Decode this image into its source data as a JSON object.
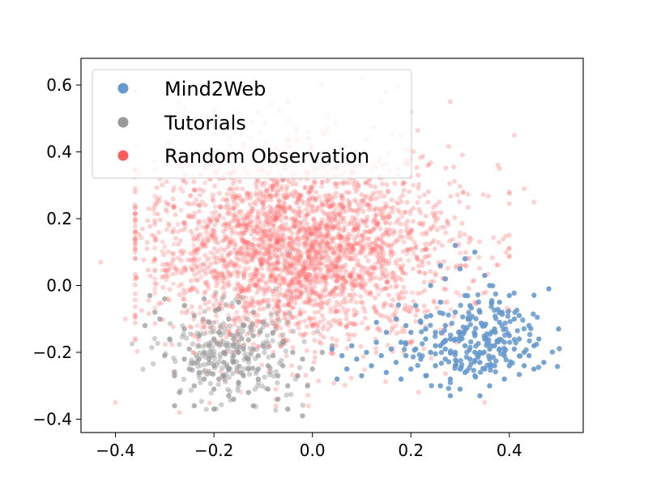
{
  "chart_data": {
    "type": "scatter",
    "title": "",
    "xlabel": "",
    "ylabel": "",
    "xlim": [
      -0.47,
      0.55
    ],
    "ylim": [
      -0.44,
      0.68
    ],
    "x_ticks": [
      -0.4,
      -0.2,
      0.0,
      0.2,
      0.4
    ],
    "y_ticks": [
      -0.4,
      -0.2,
      0.0,
      0.2,
      0.4,
      0.6
    ],
    "x_tick_labels": [
      "−0.4",
      "−0.2",
      "0.0",
      "0.2",
      "0.4"
    ],
    "y_tick_labels": [
      "−0.4",
      "−0.2",
      "0.0",
      "0.2",
      "0.4",
      "0.6"
    ],
    "grid": false,
    "legend_position": "top-left",
    "series": [
      {
        "name": "Mind2Web",
        "color": "#6699cc",
        "legend_color": "#6699cc",
        "alpha": 0.9,
        "points": [
          [
            0.48,
            -0.01
          ],
          [
            0.5,
            -0.13
          ],
          [
            0.47,
            -0.23
          ],
          [
            0.43,
            -0.2
          ],
          [
            0.41,
            -0.1
          ],
          [
            0.4,
            -0.15
          ],
          [
            0.39,
            -0.28
          ],
          [
            0.38,
            -0.05
          ],
          [
            0.37,
            -0.18
          ],
          [
            0.36,
            -0.22
          ],
          [
            0.35,
            -0.25
          ],
          [
            0.35,
            -0.12
          ],
          [
            0.34,
            -0.2
          ],
          [
            0.34,
            -0.08
          ],
          [
            0.33,
            -0.27
          ],
          [
            0.33,
            -0.15
          ],
          [
            0.32,
            -0.22
          ],
          [
            0.32,
            -0.1
          ],
          [
            0.31,
            -0.18
          ],
          [
            0.31,
            -0.03
          ],
          [
            0.3,
            -0.25
          ],
          [
            0.3,
            -0.14
          ],
          [
            0.3,
            0.05
          ],
          [
            0.29,
            -0.2
          ],
          [
            0.29,
            -0.08
          ],
          [
            0.28,
            -0.28
          ],
          [
            0.28,
            -0.16
          ],
          [
            0.27,
            -0.22
          ],
          [
            0.27,
            -0.12
          ],
          [
            0.27,
            0.02
          ],
          [
            0.26,
            -0.3
          ],
          [
            0.26,
            -0.18
          ],
          [
            0.26,
            -0.05
          ],
          [
            0.25,
            -0.24
          ],
          [
            0.25,
            -0.14
          ],
          [
            0.24,
            -0.2
          ],
          [
            0.24,
            -0.09
          ],
          [
            0.23,
            -0.27
          ],
          [
            0.23,
            -0.16
          ],
          [
            0.22,
            -0.22
          ],
          [
            0.22,
            -0.11
          ],
          [
            0.21,
            -0.19
          ],
          [
            0.2,
            -0.25
          ],
          [
            0.2,
            -0.14
          ],
          [
            0.19,
            -0.21
          ],
          [
            0.18,
            -0.28
          ],
          [
            0.18,
            -0.17
          ],
          [
            0.17,
            -0.23
          ],
          [
            0.16,
            -0.19
          ],
          [
            0.15,
            -0.26
          ],
          [
            0.14,
            -0.21
          ],
          [
            0.13,
            -0.17
          ],
          [
            0.12,
            -0.24
          ],
          [
            0.11,
            -0.2
          ],
          [
            0.1,
            -0.27
          ],
          [
            0.09,
            -0.22
          ],
          [
            0.08,
            -0.18
          ],
          [
            0.07,
            -0.25
          ],
          [
            0.06,
            -0.21
          ],
          [
            0.05,
            -0.28
          ],
          [
            0.04,
            -0.19
          ],
          [
            0.36,
            -0.3
          ],
          [
            0.37,
            -0.24
          ],
          [
            0.38,
            -0.19
          ],
          [
            0.39,
            -0.21
          ],
          [
            0.4,
            -0.24
          ],
          [
            0.41,
            -0.19
          ],
          [
            0.42,
            -0.16
          ],
          [
            0.43,
            -0.24
          ],
          [
            0.44,
            -0.12
          ],
          [
            0.45,
            -0.18
          ],
          [
            0.46,
            -0.16
          ],
          [
            0.33,
            0.1
          ],
          [
            0.31,
            0.08
          ],
          [
            0.29,
            0.12
          ],
          [
            0.35,
            0.03
          ],
          [
            0.36,
            0.0
          ],
          [
            0.34,
            -0.33
          ],
          [
            0.3,
            -0.31
          ],
          [
            0.28,
            -0.33
          ],
          [
            0.26,
            0.06
          ],
          [
            0.24,
            0.0
          ],
          [
            0.32,
            -0.06
          ],
          [
            0.38,
            -0.11
          ],
          [
            0.4,
            -0.03
          ],
          [
            0.42,
            -0.09
          ],
          [
            0.44,
            -0.21
          ],
          [
            0.45,
            -0.25
          ],
          [
            0.21,
            -0.06
          ],
          [
            0.19,
            -0.12
          ],
          [
            0.17,
            -0.1
          ],
          [
            0.15,
            -0.14
          ],
          [
            0.13,
            -0.11
          ],
          [
            0.29,
            -0.24
          ],
          [
            0.31,
            -0.26
          ],
          [
            0.33,
            -0.2
          ],
          [
            0.35,
            -0.16
          ],
          [
            0.37,
            -0.13
          ],
          [
            0.39,
            -0.17
          ],
          [
            0.27,
            -0.19
          ],
          [
            0.25,
            -0.18
          ],
          [
            0.23,
            -0.13
          ],
          [
            0.34,
            -0.23
          ],
          [
            0.36,
            -0.19
          ]
        ]
      },
      {
        "name": "Tutorials",
        "color": "#999999",
        "legend_color": "#999999",
        "alpha": 0.75,
        "points": [
          [
            -0.3,
            -0.04
          ],
          [
            -0.31,
            -0.1
          ],
          [
            -0.29,
            -0.16
          ],
          [
            -0.3,
            -0.21
          ],
          [
            -0.28,
            -0.27
          ],
          [
            -0.27,
            -0.32
          ],
          [
            -0.26,
            -0.06
          ],
          [
            -0.26,
            -0.13
          ],
          [
            -0.25,
            -0.19
          ],
          [
            -0.25,
            -0.25
          ],
          [
            -0.24,
            -0.3
          ],
          [
            -0.24,
            -0.09
          ],
          [
            -0.23,
            -0.15
          ],
          [
            -0.23,
            -0.22
          ],
          [
            -0.22,
            -0.28
          ],
          [
            -0.22,
            -0.04
          ],
          [
            -0.21,
            -0.11
          ],
          [
            -0.21,
            -0.18
          ],
          [
            -0.2,
            -0.24
          ],
          [
            -0.2,
            -0.31
          ],
          [
            -0.19,
            -0.07
          ],
          [
            -0.19,
            -0.14
          ],
          [
            -0.18,
            -0.2
          ],
          [
            -0.18,
            -0.27
          ],
          [
            -0.17,
            -0.33
          ],
          [
            -0.17,
            -0.1
          ],
          [
            -0.16,
            -0.16
          ],
          [
            -0.16,
            -0.23
          ],
          [
            -0.15,
            -0.29
          ],
          [
            -0.15,
            -0.05
          ],
          [
            -0.14,
            -0.12
          ],
          [
            -0.14,
            -0.19
          ],
          [
            -0.13,
            -0.25
          ],
          [
            -0.13,
            -0.32
          ],
          [
            -0.12,
            -0.08
          ],
          [
            -0.12,
            -0.15
          ],
          [
            -0.11,
            -0.21
          ],
          [
            -0.11,
            -0.28
          ],
          [
            -0.1,
            -0.11
          ],
          [
            -0.1,
            -0.18
          ],
          [
            -0.09,
            -0.24
          ],
          [
            -0.09,
            -0.31
          ],
          [
            -0.08,
            -0.14
          ],
          [
            -0.08,
            -0.21
          ],
          [
            -0.07,
            -0.27
          ],
          [
            -0.07,
            -0.34
          ],
          [
            -0.06,
            -0.17
          ],
          [
            -0.06,
            -0.24
          ],
          [
            -0.05,
            -0.3
          ],
          [
            -0.05,
            -0.37
          ],
          [
            -0.04,
            -0.2
          ],
          [
            -0.03,
            -0.27
          ],
          [
            -0.02,
            -0.22
          ],
          [
            -0.01,
            -0.3
          ],
          [
            0.0,
            -0.25
          ],
          [
            0.02,
            -0.2
          ],
          [
            0.04,
            -0.18
          ],
          [
            -0.02,
            -0.39
          ],
          [
            -0.33,
            -0.03
          ],
          [
            -0.32,
            -0.08
          ],
          [
            -0.34,
            -0.12
          ],
          [
            -0.28,
            -0.36
          ],
          [
            -0.24,
            -0.36
          ],
          [
            -0.2,
            -0.37
          ],
          [
            -0.16,
            -0.34
          ],
          [
            -0.12,
            -0.36
          ],
          [
            -0.23,
            -0.26
          ],
          [
            -0.21,
            -0.22
          ],
          [
            -0.19,
            -0.28
          ],
          [
            -0.17,
            -0.25
          ],
          [
            -0.15,
            -0.2
          ],
          [
            -0.13,
            -0.22
          ],
          [
            -0.11,
            -0.25
          ],
          [
            -0.14,
            -0.27
          ],
          [
            -0.18,
            -0.23
          ],
          [
            -0.22,
            -0.2
          ],
          [
            -0.26,
            -0.22
          ],
          [
            -0.16,
            -0.21
          ],
          [
            -0.12,
            -0.19
          ],
          [
            -0.2,
            -0.16
          ]
        ]
      },
      {
        "name": "Random Observation",
        "color": "#ff6b6b",
        "legend_color": "#ff5e5e",
        "alpha": 0.3,
        "center": [
          -0.02,
          0.1
        ],
        "spread": [
          0.16,
          0.15
        ],
        "point_count": 2200,
        "outliers": [
          [
            -0.43,
            0.07
          ],
          [
            -0.4,
            -0.35
          ],
          [
            -0.38,
            -0.1
          ],
          [
            -0.36,
            0.2
          ],
          [
            -0.27,
            -0.38
          ],
          [
            0.35,
            -0.35
          ],
          [
            0.41,
            0.45
          ],
          [
            0.43,
            0.29
          ],
          [
            0.45,
            0.25
          ],
          [
            0.38,
            0.35
          ],
          [
            0.28,
            0.55
          ],
          [
            0.2,
            0.52
          ],
          [
            0.15,
            0.58
          ],
          [
            0.1,
            0.62
          ],
          [
            0.02,
            0.6
          ],
          [
            -0.05,
            0.55
          ]
        ]
      }
    ]
  }
}
